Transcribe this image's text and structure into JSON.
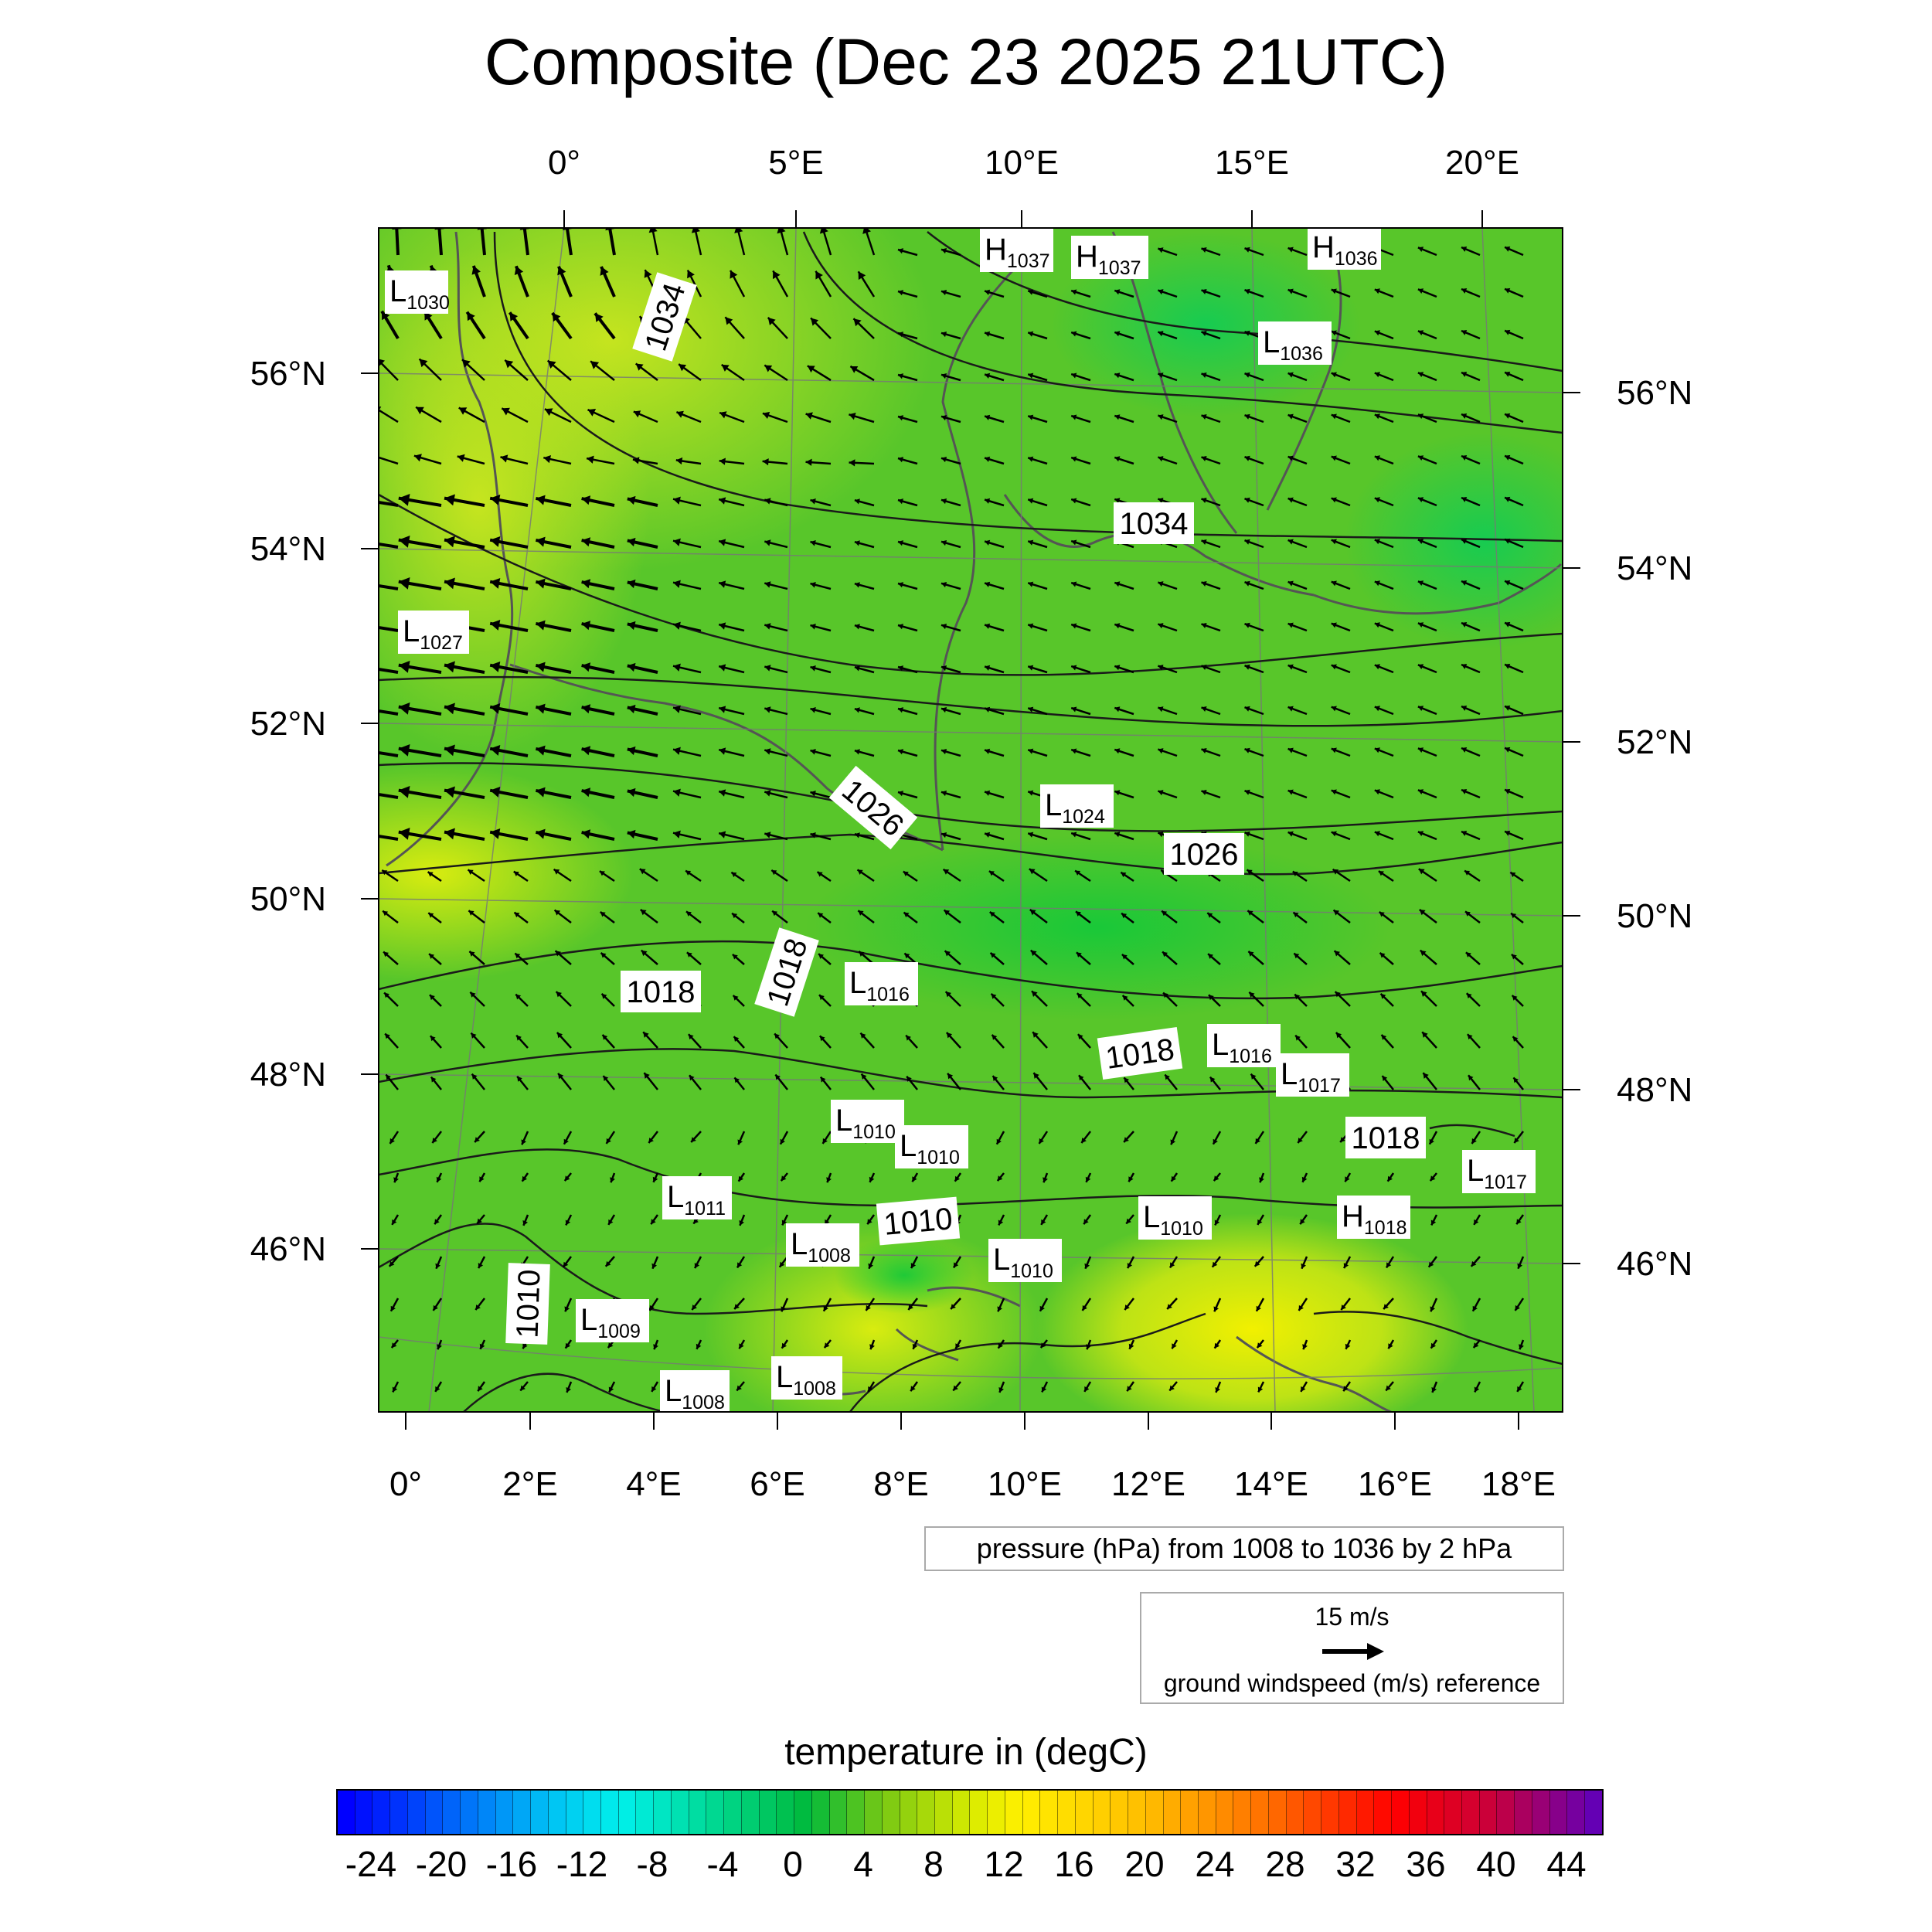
{
  "title": "Composite (Dec 23 2025 21UTC)",
  "map": {
    "top_lon_labels": [
      "0°",
      "5°E",
      "10°E",
      "15°E",
      "20°E"
    ],
    "bottom_lon_labels": [
      "0°",
      "2°E",
      "4°E",
      "6°E",
      "8°E",
      "10°E",
      "12°E",
      "14°E",
      "16°E",
      "18°E"
    ],
    "left_lat_labels": [
      "56°N",
      "54°N",
      "52°N",
      "50°N",
      "48°N",
      "46°N"
    ],
    "right_lat_labels": [
      "56°N",
      "54°N",
      "52°N",
      "50°N",
      "48°N",
      "46°N"
    ],
    "pressure_centers": [
      {
        "type": "L",
        "value": "1030"
      },
      {
        "type": "H",
        "value": "1037"
      },
      {
        "type": "H",
        "value": "1037"
      },
      {
        "type": "H",
        "value": "1036"
      },
      {
        "type": "L",
        "value": "1036"
      },
      {
        "type": "L",
        "value": "1027"
      },
      {
        "type": "L",
        "value": "1024"
      },
      {
        "type": "L",
        "value": "1016"
      },
      {
        "type": "L",
        "value": "1016"
      },
      {
        "type": "L",
        "value": "1017"
      },
      {
        "type": "L",
        "value": "1010"
      },
      {
        "type": "L",
        "value": "1010"
      },
      {
        "type": "L",
        "value": "1011"
      },
      {
        "type": "L",
        "value": "1008"
      },
      {
        "type": "L",
        "value": "1010"
      },
      {
        "type": "L",
        "value": "1010"
      },
      {
        "type": "H",
        "value": "1018"
      },
      {
        "type": "L",
        "value": "1017"
      },
      {
        "type": "L",
        "value": "1009"
      },
      {
        "type": "L",
        "value": "1008"
      },
      {
        "type": "L",
        "value": "1008"
      }
    ],
    "isobar_labels": [
      "1034",
      "1034",
      "1026",
      "1026",
      "1018",
      "1018",
      "1018",
      "1018",
      "1010",
      "1010"
    ]
  },
  "legend": {
    "pressure_text": "pressure (hPa) from 1008 to 1036 by 2 hPa",
    "wind_ref_speed": "15 m/s",
    "wind_ref_text": "ground windspeed (m/s) reference"
  },
  "colorbar": {
    "title": "temperature in (degC)",
    "tick_labels": [
      "-24",
      "-20",
      "-16",
      "-12",
      "-8",
      "-4",
      "0",
      "4",
      "8",
      "12",
      "16",
      "20",
      "24",
      "28",
      "32",
      "36",
      "40",
      "44"
    ]
  }
}
